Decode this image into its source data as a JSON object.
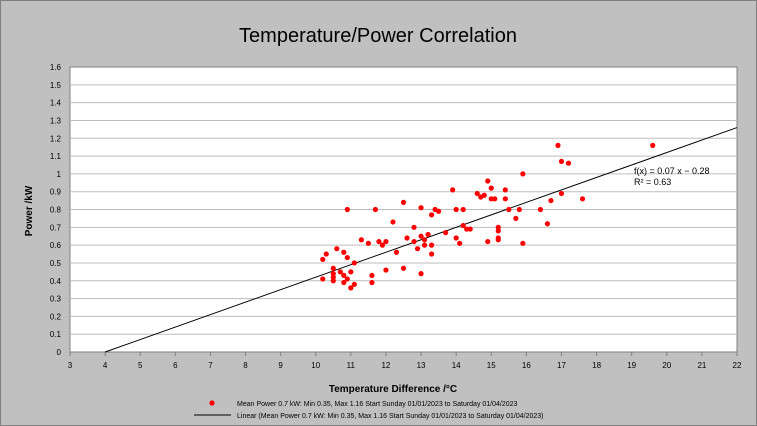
{
  "chart_data": {
    "type": "scatter",
    "title": "Temperature/Power Correlation",
    "xlabel": "Temperature Difference /°C",
    "ylabel": "Power /kW",
    "xlim": [
      3,
      22
    ],
    "ylim": [
      0,
      1.6
    ],
    "x_ticks": [
      "3",
      "4",
      "5",
      "6",
      "7",
      "8",
      "9",
      "10",
      "11",
      "12",
      "13",
      "14",
      "15",
      "16",
      "17",
      "18",
      "19",
      "20",
      "21",
      "22"
    ],
    "y_ticks": [
      "0",
      "0.1",
      "0.2",
      "0.3",
      "0.4",
      "0.5",
      "0.6",
      "0.7",
      "0.8",
      "0.9",
      "1",
      "1.1",
      "1.2",
      "1.3",
      "1.4",
      "1.5",
      "1.6"
    ],
    "grid": true,
    "legend_position": "bottom",
    "marker_color": "#ff0000",
    "line_color": "#000000",
    "series": [
      {
        "name": "Mean Power 0.7 kW: Min 0.35, Max 1.16 Start Sunday 01/01/2023 to Saturday 01/04/2023",
        "kind": "scatter",
        "points": [
          [
            10.2,
            0.52
          ],
          [
            10.2,
            0.41
          ],
          [
            10.3,
            0.55
          ],
          [
            10.5,
            0.4
          ],
          [
            10.5,
            0.42
          ],
          [
            10.5,
            0.44
          ],
          [
            10.5,
            0.47
          ],
          [
            10.6,
            0.58
          ],
          [
            10.7,
            0.45
          ],
          [
            10.8,
            0.43
          ],
          [
            10.8,
            0.39
          ],
          [
            10.8,
            0.56
          ],
          [
            10.9,
            0.53
          ],
          [
            10.9,
            0.8
          ],
          [
            10.9,
            0.41
          ],
          [
            11.0,
            0.36
          ],
          [
            11.0,
            0.45
          ],
          [
            11.1,
            0.38
          ],
          [
            11.1,
            0.5
          ],
          [
            11.3,
            0.63
          ],
          [
            11.5,
            0.61
          ],
          [
            11.6,
            0.43
          ],
          [
            11.6,
            0.39
          ],
          [
            11.7,
            0.8
          ],
          [
            11.8,
            0.62
          ],
          [
            11.9,
            0.6
          ],
          [
            12.0,
            0.62
          ],
          [
            12.0,
            0.46
          ],
          [
            12.2,
            0.73
          ],
          [
            12.3,
            0.56
          ],
          [
            12.5,
            0.84
          ],
          [
            12.5,
            0.47
          ],
          [
            12.6,
            0.64
          ],
          [
            12.8,
            0.7
          ],
          [
            12.8,
            0.62
          ],
          [
            12.9,
            0.58
          ],
          [
            13.0,
            0.81
          ],
          [
            13.0,
            0.65
          ],
          [
            13.0,
            0.44
          ],
          [
            13.1,
            0.6
          ],
          [
            13.1,
            0.63
          ],
          [
            13.2,
            0.66
          ],
          [
            13.3,
            0.55
          ],
          [
            13.3,
            0.77
          ],
          [
            13.3,
            0.6
          ],
          [
            13.4,
            0.8
          ],
          [
            13.5,
            0.79
          ],
          [
            13.7,
            0.67
          ],
          [
            13.9,
            0.91
          ],
          [
            14.0,
            0.8
          ],
          [
            14.0,
            0.64
          ],
          [
            14.1,
            0.61
          ],
          [
            14.2,
            0.8
          ],
          [
            14.2,
            0.71
          ],
          [
            14.3,
            0.69
          ],
          [
            14.4,
            0.69
          ],
          [
            14.6,
            0.89
          ],
          [
            14.7,
            0.87
          ],
          [
            14.8,
            0.88
          ],
          [
            14.9,
            0.96
          ],
          [
            14.9,
            0.62
          ],
          [
            15.0,
            0.92
          ],
          [
            15.0,
            0.86
          ],
          [
            15.1,
            0.86
          ],
          [
            15.2,
            0.7
          ],
          [
            15.2,
            0.68
          ],
          [
            15.2,
            0.64
          ],
          [
            15.2,
            0.63
          ],
          [
            15.4,
            0.91
          ],
          [
            15.4,
            0.86
          ],
          [
            15.5,
            0.8
          ],
          [
            15.7,
            0.75
          ],
          [
            15.8,
            0.8
          ],
          [
            15.9,
            1.0
          ],
          [
            15.9,
            0.61
          ],
          [
            16.4,
            0.8
          ],
          [
            16.6,
            0.72
          ],
          [
            16.7,
            0.85
          ],
          [
            16.9,
            1.16
          ],
          [
            17.0,
            1.07
          ],
          [
            17.0,
            0.89
          ],
          [
            17.2,
            1.06
          ],
          [
            17.6,
            0.86
          ],
          [
            19.6,
            1.16
          ]
        ]
      },
      {
        "name": "Linear (Mean Power 0.7 kW: Min 0.35, Max 1.16 Start Sunday 01/01/2023 to Saturday 01/04/2023)",
        "kind": "line",
        "slope": 0.07,
        "intercept": -0.28
      }
    ],
    "annotation": {
      "equation": "f(x) = 0.07 x − 0.28",
      "r_squared": "R² = 0.63"
    }
  }
}
